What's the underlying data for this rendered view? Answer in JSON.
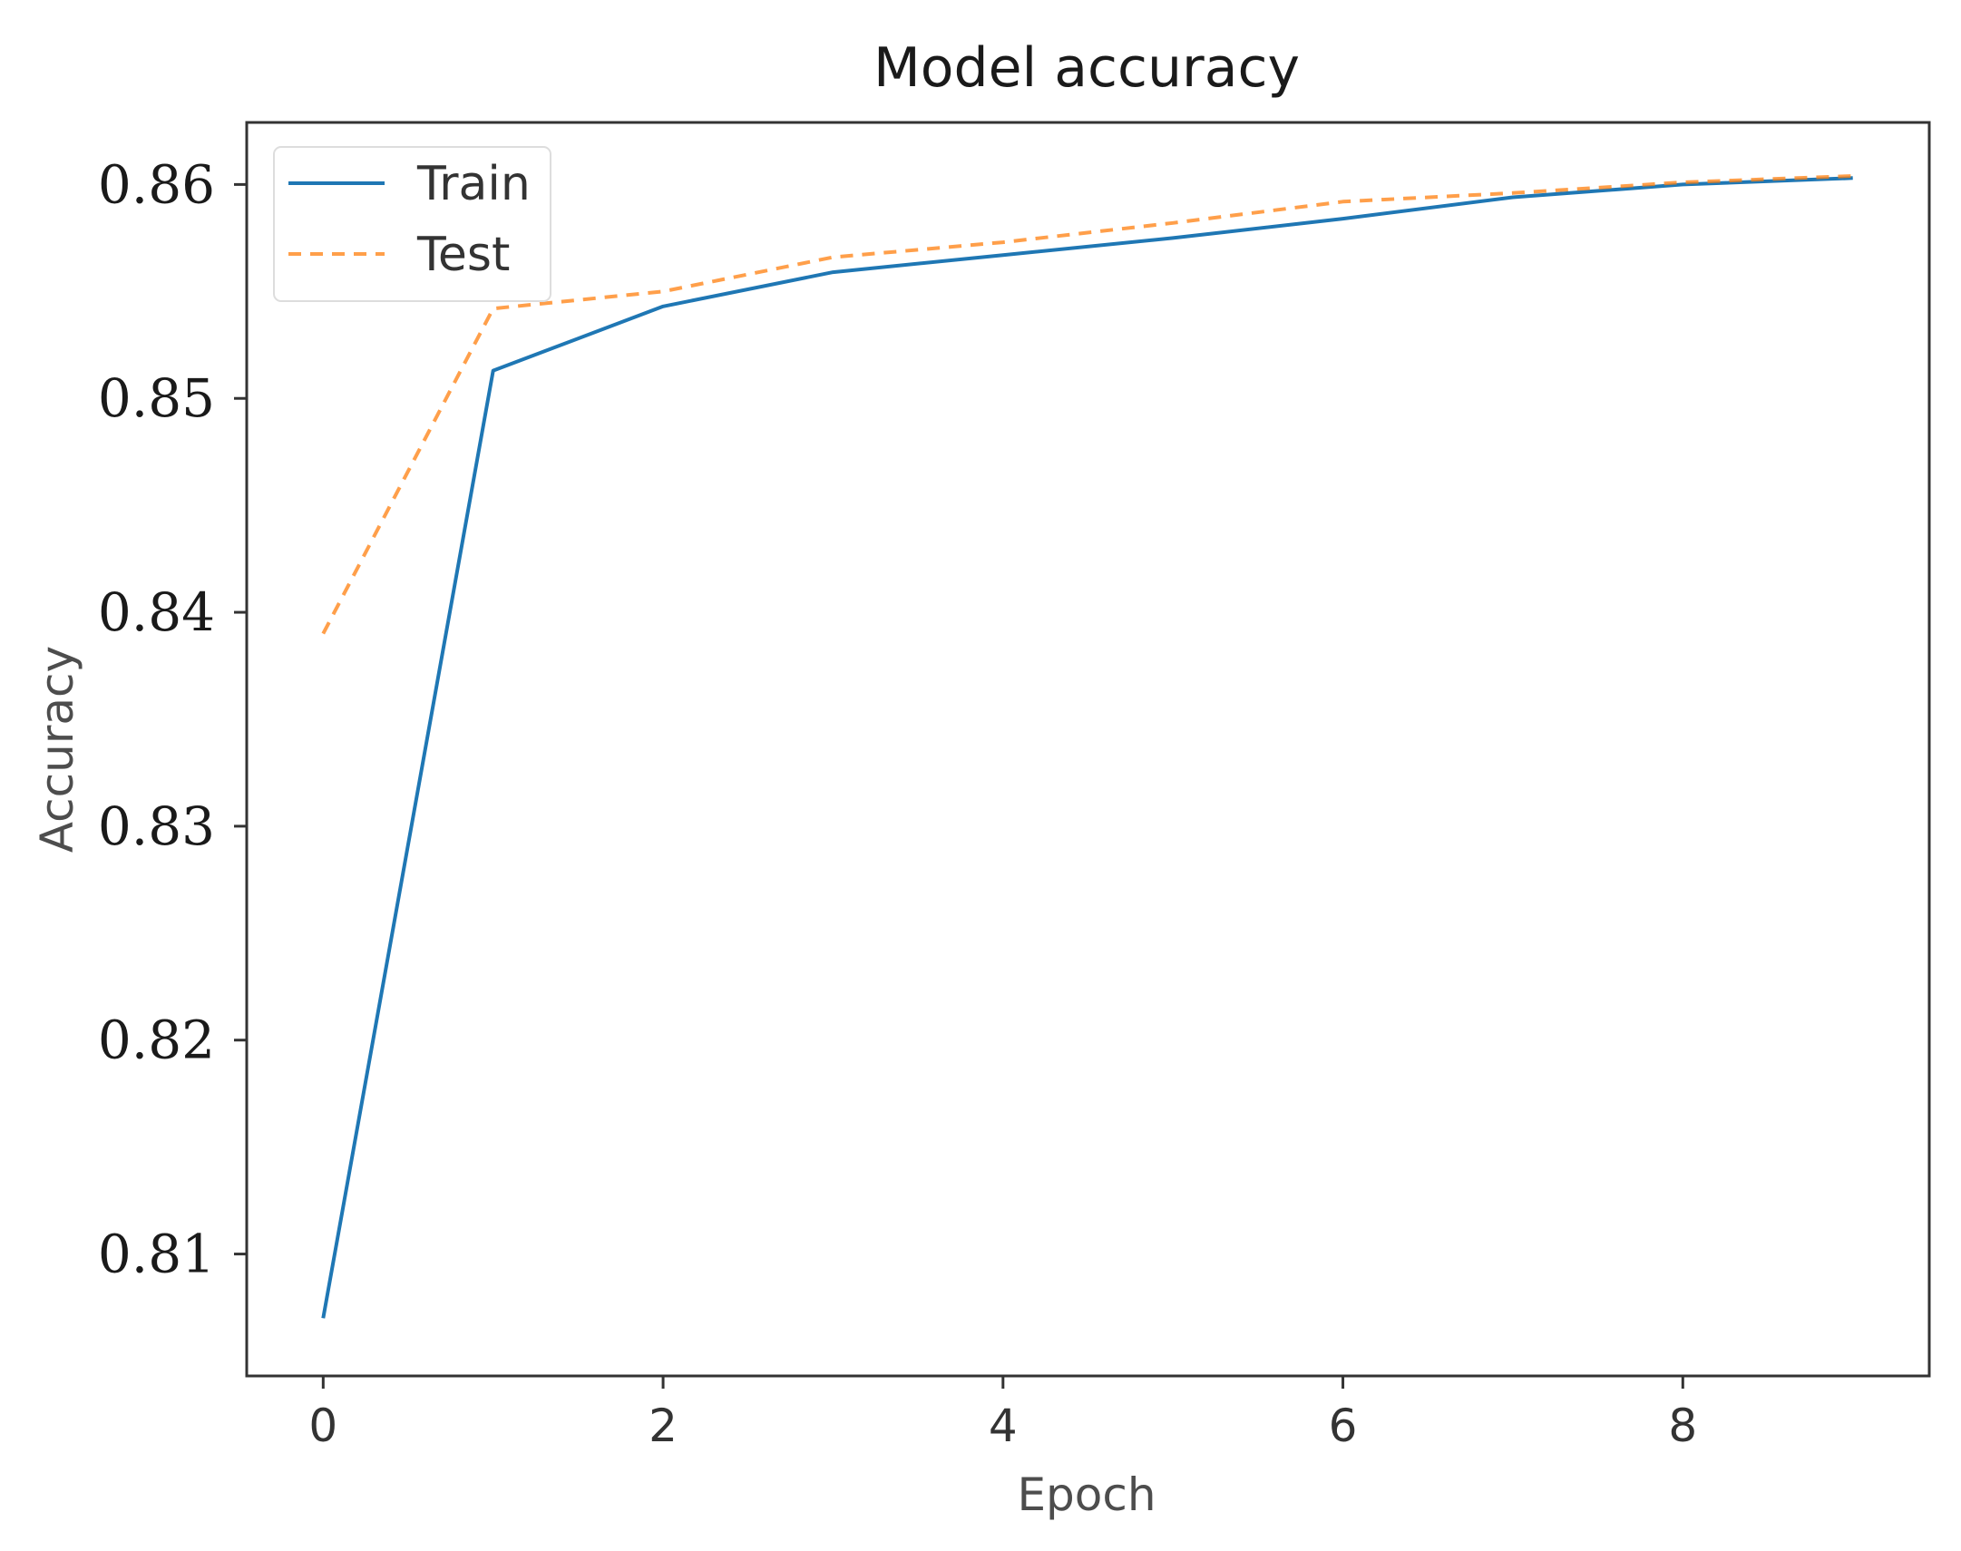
{
  "chart_data": {
    "type": "line",
    "title": "Model accuracy",
    "xlabel": "Epoch",
    "ylabel": "Accuracy",
    "x": [
      0,
      1,
      2,
      3,
      4,
      5,
      6,
      7,
      8,
      9
    ],
    "xlim": [
      -0.45,
      9.45
    ],
    "ylim": [
      0.8043,
      0.8629
    ],
    "xticks": [
      0,
      2,
      4,
      6,
      8
    ],
    "xtick_labels": [
      "0",
      "2",
      "4",
      "6",
      "8"
    ],
    "yticks": [
      0.81,
      0.82,
      0.83,
      0.84,
      0.85,
      0.86
    ],
    "ytick_labels": [
      "0.81",
      "0.82",
      "0.83",
      "0.84",
      "0.85",
      "0.86"
    ],
    "grid": false,
    "legend_position": "upper left",
    "series": [
      {
        "name": "Train",
        "color": "#1f77b4",
        "style": "solid",
        "values": [
          0.807,
          0.8513,
          0.8543,
          0.8559,
          0.8567,
          0.8575,
          0.8584,
          0.8594,
          0.86,
          0.8603
        ]
      },
      {
        "name": "Test",
        "color": "#ff7f0e",
        "style": "dashed",
        "values": [
          0.839,
          0.8542,
          0.855,
          0.8566,
          0.8573,
          0.8582,
          0.8592,
          0.8596,
          0.8601,
          0.8604
        ]
      }
    ]
  }
}
